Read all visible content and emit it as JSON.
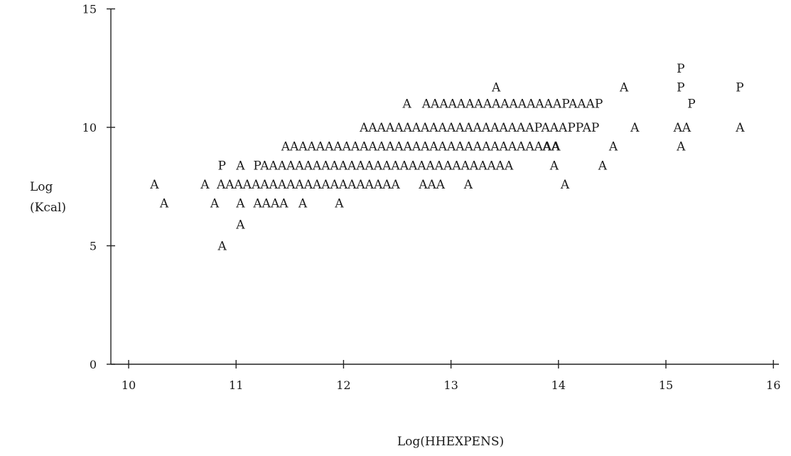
{
  "chart_data": {
    "type": "scatter",
    "title": "",
    "xlabel": "Log(HHEXPENS)",
    "ylabel": [
      "Log",
      "(Kcal)"
    ],
    "xlim": [
      10,
      16
    ],
    "ylim": [
      0,
      15
    ],
    "x_ticks": [
      "10",
      "11",
      "12",
      "13",
      "14",
      "15",
      "16"
    ],
    "y_ticks": [
      "0",
      "5",
      "10",
      "15"
    ],
    "grid": false,
    "legend": "none",
    "rows": [
      {
        "y": 12.5,
        "segments": [
          {
            "x": 15.1,
            "text": "P"
          }
        ]
      },
      {
        "y": 11.7,
        "segments": [
          {
            "x": 13.38,
            "text": "A"
          },
          {
            "x": 14.57,
            "text": "A"
          },
          {
            "x": 15.1,
            "text": "P"
          },
          {
            "x": 15.65,
            "text": "P"
          }
        ]
      },
      {
        "y": 11.0,
        "segments": [
          {
            "x": 12.55,
            "text": "A"
          },
          {
            "x": 12.73,
            "text": "AAAAAAAAAAAAAAAAPAAAP"
          },
          {
            "x": 15.2,
            "text": "P"
          }
        ]
      },
      {
        "y": 10.0,
        "segments": [
          {
            "x": 12.15,
            "text": "AAAAAAAAAAAAAAAAAAAAPAAAPPAP"
          },
          {
            "x": 14.67,
            "text": "A"
          },
          {
            "x": 15.07,
            "text": "AA"
          },
          {
            "x": 15.65,
            "text": "A"
          }
        ]
      },
      {
        "y": 9.2,
        "segments": [
          {
            "x": 11.42,
            "text": "AAAAAAAAAAAAAAAAAAAAAAAAAAAAAAAA"
          },
          {
            "x": 13.85,
            "text": "AA"
          },
          {
            "x": 14.47,
            "text": "A"
          },
          {
            "x": 15.1,
            "text": "A"
          }
        ]
      },
      {
        "y": 8.4,
        "segments": [
          {
            "x": 10.83,
            "text": "P"
          },
          {
            "x": 11.0,
            "text": "A"
          },
          {
            "x": 11.16,
            "text": "PAAAAAAAAAAAAAAAAAAAAAAAAAAAAA"
          },
          {
            "x": 13.92,
            "text": "A"
          },
          {
            "x": 14.37,
            "text": "A"
          }
        ]
      },
      {
        "y": 7.6,
        "segments": [
          {
            "x": 10.2,
            "text": "A"
          },
          {
            "x": 10.67,
            "text": "A"
          },
          {
            "x": 10.82,
            "text": "AAAAAAAAAAAAAAAAAAAAA"
          },
          {
            "x": 12.7,
            "text": "AAA"
          },
          {
            "x": 13.12,
            "text": "A"
          },
          {
            "x": 14.02,
            "text": "A"
          }
        ]
      },
      {
        "y": 6.8,
        "segments": [
          {
            "x": 10.29,
            "text": "A"
          },
          {
            "x": 10.76,
            "text": "A"
          },
          {
            "x": 11.0,
            "text": "A"
          },
          {
            "x": 11.16,
            "text": "AAAA"
          },
          {
            "x": 11.58,
            "text": "A"
          },
          {
            "x": 11.92,
            "text": "A"
          }
        ]
      },
      {
        "y": 5.9,
        "segments": [
          {
            "x": 11.0,
            "text": "A"
          }
        ]
      },
      {
        "y": 5.0,
        "segments": [
          {
            "x": 10.83,
            "text": "A"
          }
        ]
      }
    ]
  }
}
